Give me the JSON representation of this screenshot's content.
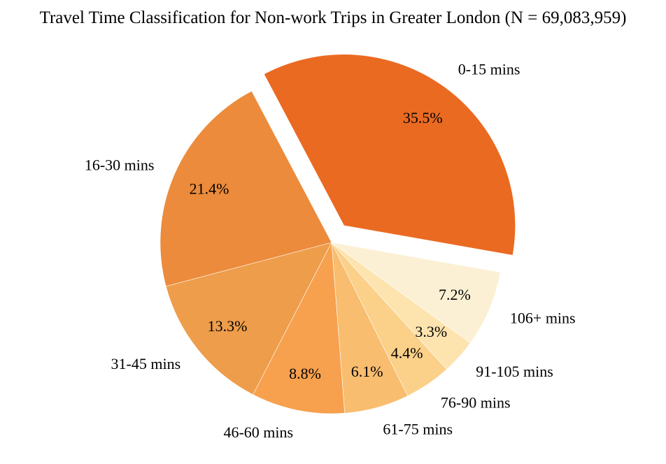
{
  "chart_data": {
    "type": "pie",
    "title": "Travel Time Classification for Non-work Trips in Greater London (N = 69,083,959)",
    "start_angle_deg": -10,
    "direction": "counterclockwise",
    "explode": "0-15 mins",
    "slices": [
      {
        "label": "0-15 mins",
        "value": 35.5,
        "pct_label": "35.5%",
        "color": "#ea6a22"
      },
      {
        "label": "16-30 mins",
        "value": 21.4,
        "pct_label": "21.4%",
        "color": "#ec8b3b"
      },
      {
        "label": "31-45 mins",
        "value": 13.3,
        "pct_label": "13.3%",
        "color": "#ee9d4b"
      },
      {
        "label": "46-60 mins",
        "value": 8.8,
        "pct_label": "8.8%",
        "color": "#f7a04e"
      },
      {
        "label": "61-75 mins",
        "value": 6.1,
        "pct_label": "6.1%",
        "color": "#f9bd6f"
      },
      {
        "label": "76-90 mins",
        "value": 4.4,
        "pct_label": "4.4%",
        "color": "#fbd088"
      },
      {
        "label": "91-105 mins",
        "value": 3.3,
        "pct_label": "3.3%",
        "color": "#fde3ae"
      },
      {
        "label": "106+ mins",
        "value": 7.2,
        "pct_label": "7.2%",
        "color": "#fcf0d4"
      }
    ]
  }
}
